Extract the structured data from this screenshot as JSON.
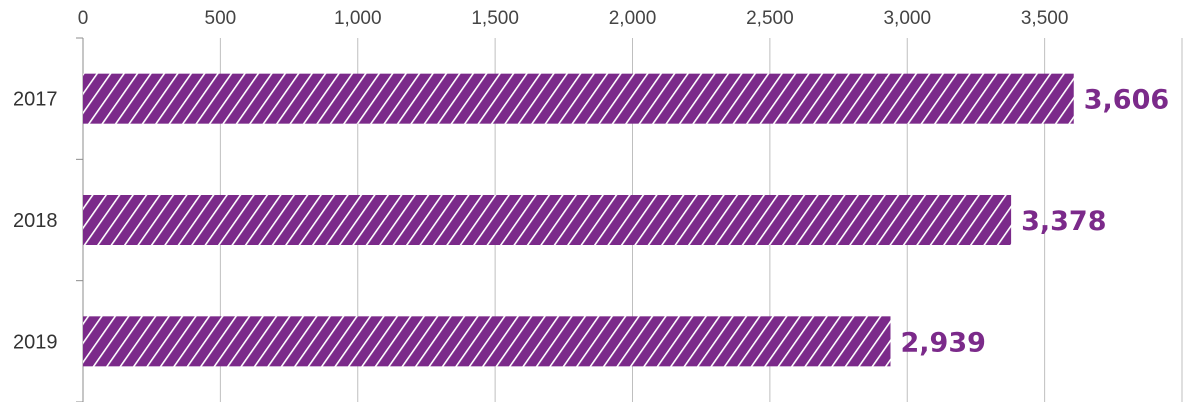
{
  "colors": {
    "bar": "#7B2A8A",
    "data_label": "#7B2A8A",
    "grid": "#BFBFBF",
    "axis": "#8C8C8C"
  },
  "chart_data": {
    "type": "bar",
    "orientation": "horizontal",
    "categories": [
      "2017",
      "2018",
      "2019"
    ],
    "values": [
      3606,
      3378,
      2939
    ],
    "data_labels": [
      "3,606",
      "3,378",
      "2,939"
    ],
    "xlim": [
      0,
      4000
    ],
    "x_ticks": [
      0,
      500,
      1000,
      1500,
      2000,
      2500,
      3000,
      3500
    ],
    "x_tick_labels": [
      "0",
      "500",
      "1,000",
      "1,500",
      "2,000",
      "2,500",
      "3,000",
      "3,500"
    ],
    "x_axis_position": "top",
    "grid": true,
    "bar_fill": "diagonal-hatch",
    "title": "",
    "xlabel": "",
    "ylabel": ""
  }
}
